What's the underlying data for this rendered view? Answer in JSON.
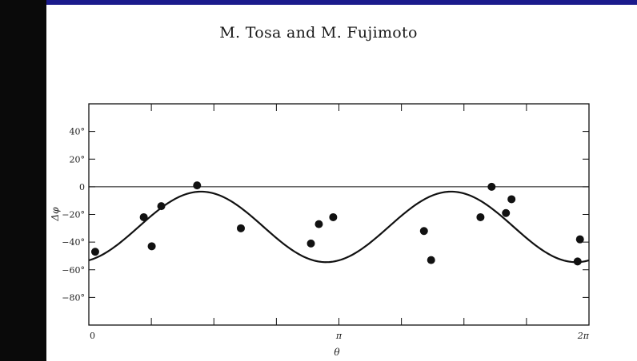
{
  "page": {
    "header": "M. Tosa and M. Fujimoto"
  },
  "colors": {
    "frame": "#1b1b8c",
    "ink": "#111111",
    "paper": "#ffffff"
  },
  "chart_data": {
    "type": "scatter",
    "xlabel": "θ",
    "ylabel": "Δφ",
    "xlim": [
      0,
      6.2832
    ],
    "ylim": [
      -100,
      60
    ],
    "x_ticks": [
      {
        "value": 0,
        "label": "0"
      },
      {
        "value": 3.1416,
        "label": "π"
      },
      {
        "value": 6.2832,
        "label": "2π"
      }
    ],
    "y_ticks": [
      {
        "value": 40,
        "label": "40°"
      },
      {
        "value": 20,
        "label": "20°"
      },
      {
        "value": 0,
        "label": "0"
      },
      {
        "value": -20,
        "label": "−20°"
      },
      {
        "value": -40,
        "label": "−40°"
      },
      {
        "value": -60,
        "label": "−60°"
      },
      {
        "value": -80,
        "label": "−80°"
      }
    ],
    "reference_line": {
      "y": 0
    },
    "curve": {
      "model": "sinusoid",
      "offset": -29,
      "amplitude": 25.5,
      "phase": -1.25,
      "x_range": [
        0,
        6.2832
      ]
    },
    "points": [
      {
        "x": 0.08,
        "y": -47
      },
      {
        "x": 0.69,
        "y": -22
      },
      {
        "x": 0.79,
        "y": -43
      },
      {
        "x": 0.91,
        "y": -14
      },
      {
        "x": 1.36,
        "y": 1
      },
      {
        "x": 1.91,
        "y": -30
      },
      {
        "x": 2.79,
        "y": -41
      },
      {
        "x": 2.89,
        "y": -27
      },
      {
        "x": 3.07,
        "y": -22
      },
      {
        "x": 4.21,
        "y": -32
      },
      {
        "x": 4.3,
        "y": -53
      },
      {
        "x": 4.92,
        "y": -22
      },
      {
        "x": 5.06,
        "y": 0
      },
      {
        "x": 5.24,
        "y": -19
      },
      {
        "x": 5.31,
        "y": -9
      },
      {
        "x": 6.14,
        "y": -54
      },
      {
        "x": 6.17,
        "y": -38
      }
    ]
  }
}
